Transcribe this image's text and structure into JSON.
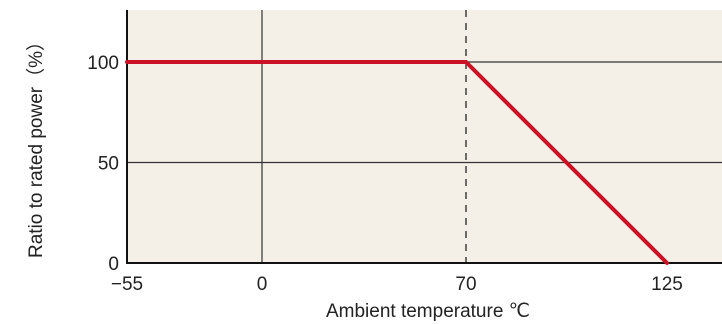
{
  "chart_data": {
    "type": "line",
    "xlabel": "Ambient temperature ℃",
    "ylabel": "Ratio to rated power（%）",
    "xlim": [
      -55,
      125
    ],
    "ylim": [
      0,
      125
    ],
    "x_ticks": [
      {
        "value": -55,
        "label": "−55"
      },
      {
        "value": 0,
        "label": "0"
      },
      {
        "value": 70,
        "label": "70"
      },
      {
        "value": 125,
        "label": "125"
      }
    ],
    "y_ticks": [
      {
        "value": 0,
        "label": "0"
      },
      {
        "value": 50,
        "label": "50"
      },
      {
        "value": 100,
        "label": "100"
      }
    ],
    "grid": true,
    "dashed_vline_x": 70,
    "series": [
      {
        "x": [
          -55,
          70,
          125
        ],
        "y": [
          100,
          100,
          0
        ]
      }
    ],
    "colors": {
      "background": "#f4f0e8",
      "line": "#cc1126",
      "grid": "#333333",
      "axis": "#111111"
    }
  }
}
